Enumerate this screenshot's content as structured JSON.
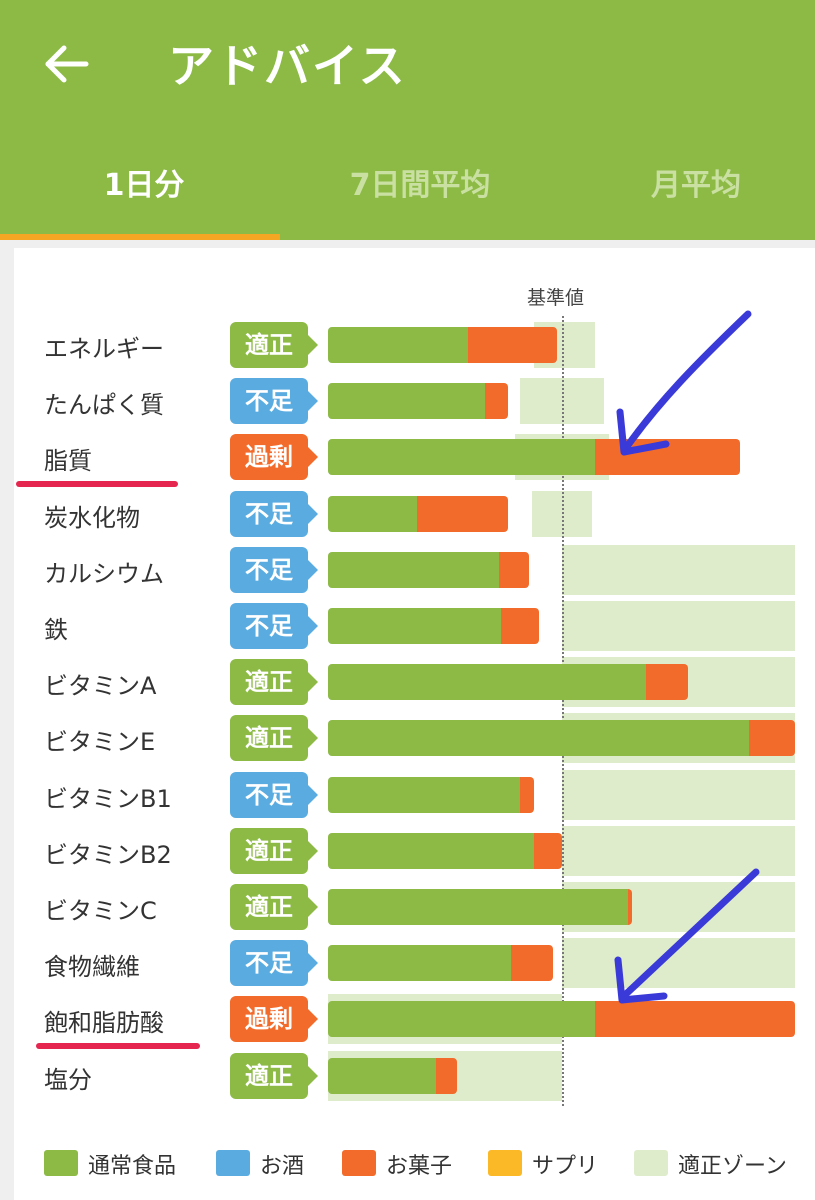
{
  "header": {
    "title": "アドバイス",
    "tabs": [
      {
        "label": "1日分",
        "active": true
      },
      {
        "label": "7日間平均",
        "active": false
      },
      {
        "label": "月平均",
        "active": false
      }
    ]
  },
  "chart_data": {
    "type": "bar",
    "reference_label": "基準値",
    "rows": [
      {
        "name": "エネルギー",
        "status": "適正",
        "food": 0.6,
        "sweet": 0.38,
        "zone": [
          0.88,
          1.14
        ]
      },
      {
        "name": "たんぱく質",
        "status": "不足",
        "food": 0.67,
        "sweet": 0.1,
        "zone": [
          0.82,
          1.18
        ]
      },
      {
        "name": "脂質",
        "status": "過剰",
        "food": 1.14,
        "sweet": 0.62,
        "zone": [
          0.8,
          1.2
        ]
      },
      {
        "name": "炭水化物",
        "status": "不足",
        "food": 0.38,
        "sweet": 0.39,
        "zone": [
          0.87,
          1.13
        ]
      },
      {
        "name": "カルシウム",
        "status": "不足",
        "food": 0.73,
        "sweet": 0.13,
        "zone": [
          1.0,
          2.0
        ]
      },
      {
        "name": "鉄",
        "status": "不足",
        "food": 0.74,
        "sweet": 0.16,
        "zone": [
          1.0,
          2.0
        ]
      },
      {
        "name": "ビタミンA",
        "status": "適正",
        "food": 1.36,
        "sweet": 0.18,
        "zone": [
          1.0,
          2.0
        ]
      },
      {
        "name": "ビタミンE",
        "status": "適正",
        "food": 1.8,
        "sweet": 0.2,
        "zone": [
          1.0,
          2.0
        ]
      },
      {
        "name": "ビタミンB1",
        "status": "不足",
        "food": 0.82,
        "sweet": 0.06,
        "zone": [
          1.0,
          2.0
        ]
      },
      {
        "name": "ビタミンB2",
        "status": "適正",
        "food": 0.88,
        "sweet": 0.12,
        "zone": [
          1.0,
          2.0
        ]
      },
      {
        "name": "ビタミンC",
        "status": "適正",
        "food": 1.28,
        "sweet": 0.02,
        "zone": [
          1.0,
          2.0
        ]
      },
      {
        "name": "食物繊維",
        "status": "不足",
        "food": 0.78,
        "sweet": 0.18,
        "zone": [
          1.0,
          2.0
        ]
      },
      {
        "name": "飽和脂肪酸",
        "status": "過剰",
        "food": 1.14,
        "sweet": 0.86,
        "zone": [
          0.0,
          1.0
        ]
      },
      {
        "name": "塩分",
        "status": "適正",
        "food": 0.46,
        "sweet": 0.09,
        "zone": [
          0.0,
          1.0
        ]
      }
    ],
    "legend": [
      {
        "label": "通常食品",
        "color": "#8cba45"
      },
      {
        "label": "お酒",
        "color": "#5aace0"
      },
      {
        "label": "お菓子",
        "color": "#f26b2b"
      },
      {
        "label": "サプリ",
        "color": "#fbb928"
      },
      {
        "label": "適正ゾーン",
        "color": "#dfeccb"
      }
    ]
  },
  "colors": {
    "header_green": "#8cba45",
    "tab_indicator": "#f5a623",
    "status_ok": "#8cba45",
    "status_low": "#5aace0",
    "status_high": "#f26b2b",
    "annotation_arrow": "#3a3ad8",
    "annotation_underline": "#e5264e"
  },
  "annotations": {
    "underlined_rows": [
      "脂質",
      "飽和脂肪酸"
    ],
    "arrow_rows": [
      "脂質",
      "飽和脂肪酸"
    ]
  }
}
